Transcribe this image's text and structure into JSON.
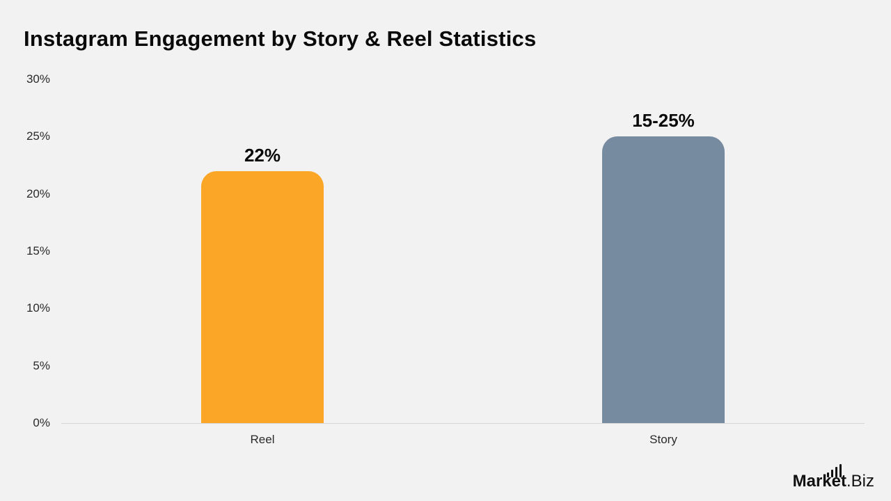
{
  "title": "Instagram Engagement by Story & Reel Statistics",
  "brand": {
    "part1": "Market",
    "part2": ".Biz",
    "icon": "bar-chart-icon"
  },
  "colors": {
    "background": "#f2f2f2",
    "reel": "#fba627",
    "story": "#778ba0",
    "baseline": "#d6d6d6"
  },
  "y_axis": {
    "ticks": [
      "0%",
      "5%",
      "10%",
      "15%",
      "20%",
      "25%",
      "30%"
    ]
  },
  "bars": [
    {
      "category": "Reel",
      "label": "22%",
      "value": 22
    },
    {
      "category": "Story",
      "label": "15-25%",
      "value": 25
    }
  ],
  "chart_data": {
    "type": "bar",
    "title": "Instagram Engagement by Story & Reel Statistics",
    "categories": [
      "Reel",
      "Story"
    ],
    "values": [
      22,
      25
    ],
    "data_labels": [
      "22%",
      "15-25%"
    ],
    "xlabel": "",
    "ylabel": "",
    "ylim": [
      0,
      30
    ],
    "yticks": [
      "0%",
      "5%",
      "10%",
      "15%",
      "20%",
      "25%",
      "30%"
    ],
    "grid": false,
    "legend": null,
    "colors": [
      "#fba627",
      "#778ba0"
    ]
  }
}
